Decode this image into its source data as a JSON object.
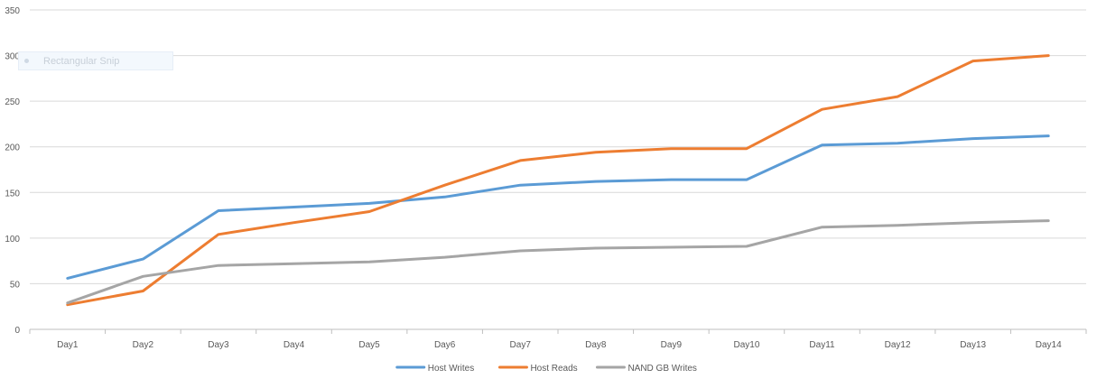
{
  "chart_data": {
    "type": "line",
    "title": "",
    "xlabel": "",
    "ylabel": "",
    "ylim": [
      0,
      350
    ],
    "yticks": [
      0,
      50,
      100,
      150,
      200,
      250,
      300,
      350
    ],
    "grid": "horizontal",
    "legend_position": "bottom",
    "categories": [
      "Day1",
      "Day2",
      "Day3",
      "Day4",
      "Day5",
      "Day6",
      "Day7",
      "Day8",
      "Day9",
      "Day10",
      "Day11",
      "Day12",
      "Day13",
      "Day14"
    ],
    "series": [
      {
        "name": "Host Writes",
        "color": "#5B9BD5",
        "values": [
          56,
          77,
          130,
          134,
          138,
          145,
          158,
          162,
          164,
          164,
          202,
          204,
          209,
          212
        ]
      },
      {
        "name": "Host Reads",
        "color": "#ED7D31",
        "values": [
          27,
          42,
          104,
          117,
          129,
          158,
          185,
          194,
          198,
          198,
          241,
          255,
          294,
          300
        ]
      },
      {
        "name": "NAND GB Writes",
        "color": "#A5A5A5",
        "values": [
          29,
          58,
          70,
          72,
          74,
          79,
          86,
          89,
          90,
          91,
          112,
          114,
          117,
          119
        ]
      }
    ]
  },
  "overlay": {
    "ghost_label": "Rectangular Snip"
  }
}
